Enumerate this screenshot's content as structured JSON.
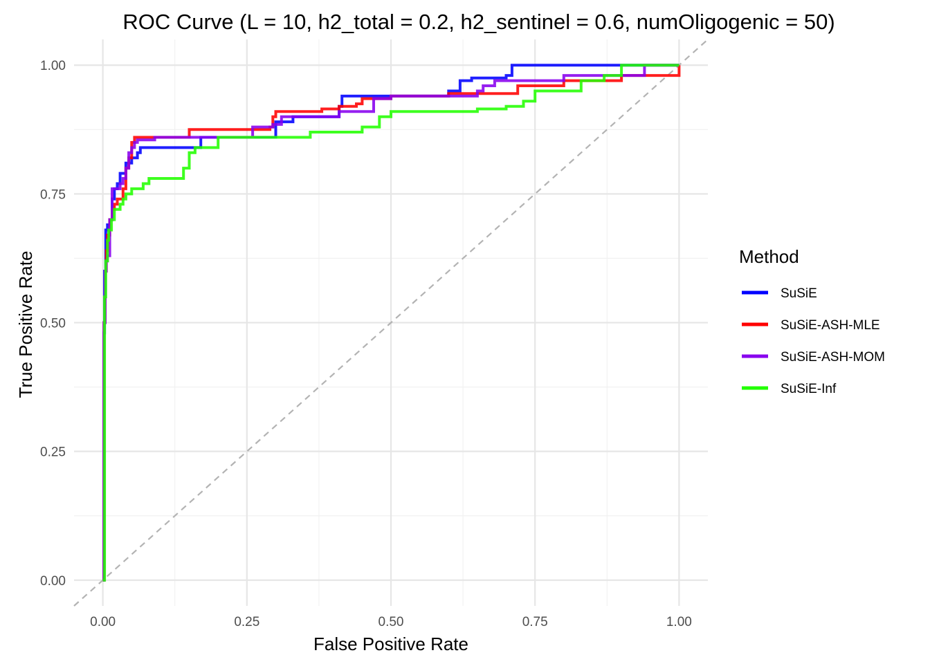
{
  "chart_data": {
    "type": "line",
    "title": "ROC Curve (L = 10, h2_total = 0.2, h2_sentinel = 0.6, numOligogenic = 50)",
    "xlabel": "False Positive Rate",
    "ylabel": "True Positive Rate",
    "xlim": [
      -0.05,
      1.05
    ],
    "ylim": [
      -0.05,
      1.05
    ],
    "xticks": [
      0,
      0.25,
      0.5,
      0.75,
      1
    ],
    "yticks": [
      0,
      0.25,
      0.5,
      0.75,
      1
    ],
    "xtick_labels": [
      "0.00",
      "0.25",
      "0.50",
      "0.75",
      "1.00"
    ],
    "ytick_labels": [
      "0.00",
      "0.25",
      "0.50",
      "0.75",
      "1.00"
    ],
    "grid": true,
    "reference_line": {
      "x": [
        -0.05,
        1.05
      ],
      "y": [
        -0.05,
        1.05
      ],
      "style": "dashed",
      "color": "#b3b3b3"
    },
    "legend": {
      "title": "Method",
      "position": "right"
    },
    "series": [
      {
        "name": "SuSiE",
        "color": "#0000ff",
        "x": [
          0,
          0.002,
          0.003,
          0.005,
          0.008,
          0.012,
          0.016,
          0.02,
          0.025,
          0.03,
          0.035,
          0.04,
          0.045,
          0.05,
          0.055,
          0.06,
          0.065,
          0.07,
          0.09,
          0.13,
          0.17,
          0.24,
          0.3,
          0.33,
          0.38,
          0.41,
          0.415,
          0.44,
          0.5,
          0.6,
          0.62,
          0.63,
          0.64,
          0.66,
          0.7,
          0.71,
          0.8,
          0.87,
          0.93,
          1.0
        ],
        "y": [
          0,
          0.48,
          0.6,
          0.68,
          0.69,
          0.7,
          0.74,
          0.76,
          0.77,
          0.79,
          0.79,
          0.81,
          0.81,
          0.82,
          0.82,
          0.83,
          0.84,
          0.84,
          0.84,
          0.84,
          0.86,
          0.86,
          0.89,
          0.9,
          0.9,
          0.92,
          0.94,
          0.94,
          0.94,
          0.95,
          0.97,
          0.97,
          0.975,
          0.975,
          0.98,
          1.0,
          1.0,
          1.0,
          1.0,
          1.0
        ]
      },
      {
        "name": "SuSiE-ASH-MLE",
        "color": "#ff0000",
        "x": [
          0,
          0.002,
          0.004,
          0.006,
          0.008,
          0.012,
          0.016,
          0.02,
          0.025,
          0.03,
          0.035,
          0.04,
          0.045,
          0.05,
          0.055,
          0.065,
          0.1,
          0.15,
          0.25,
          0.29,
          0.295,
          0.3,
          0.33,
          0.38,
          0.41,
          0.44,
          0.45,
          0.5,
          0.6,
          0.7,
          0.72,
          0.72,
          0.8,
          0.9,
          0.95,
          0.96,
          1.0
        ],
        "y": [
          0,
          0.5,
          0.6,
          0.64,
          0.67,
          0.7,
          0.72,
          0.73,
          0.74,
          0.74,
          0.76,
          0.8,
          0.82,
          0.85,
          0.86,
          0.86,
          0.86,
          0.875,
          0.875,
          0.88,
          0.9,
          0.91,
          0.91,
          0.915,
          0.92,
          0.925,
          0.935,
          0.94,
          0.945,
          0.945,
          0.945,
          0.96,
          0.97,
          0.98,
          0.98,
          0.98,
          1.0
        ]
      },
      {
        "name": "SuSiE-ASH-MOM",
        "color": "#8800ee",
        "x": [
          0,
          0.002,
          0.004,
          0.006,
          0.008,
          0.012,
          0.016,
          0.02,
          0.03,
          0.035,
          0.04,
          0.045,
          0.05,
          0.055,
          0.06,
          0.09,
          0.15,
          0.26,
          0.295,
          0.31,
          0.37,
          0.4,
          0.41,
          0.47,
          0.5,
          0.6,
          0.65,
          0.66,
          0.68,
          0.75,
          0.8,
          0.93,
          0.94,
          1.0
        ],
        "y": [
          0,
          0.5,
          0.6,
          0.62,
          0.63,
          0.7,
          0.76,
          0.76,
          0.77,
          0.78,
          0.8,
          0.83,
          0.84,
          0.85,
          0.855,
          0.86,
          0.86,
          0.88,
          0.885,
          0.9,
          0.9,
          0.9,
          0.91,
          0.935,
          0.94,
          0.94,
          0.95,
          0.96,
          0.97,
          0.97,
          0.98,
          0.98,
          1.0,
          1.0
        ]
      },
      {
        "name": "SuSiE-Inf",
        "color": "#22ff00",
        "x": [
          0,
          0.003,
          0.005,
          0.008,
          0.01,
          0.015,
          0.02,
          0.025,
          0.03,
          0.035,
          0.04,
          0.05,
          0.06,
          0.07,
          0.08,
          0.1,
          0.12,
          0.14,
          0.15,
          0.16,
          0.18,
          0.2,
          0.25,
          0.3,
          0.36,
          0.45,
          0.48,
          0.5,
          0.6,
          0.65,
          0.7,
          0.73,
          0.75,
          0.8,
          0.83,
          0.87,
          0.9,
          0.95,
          1.0
        ],
        "y": [
          0,
          0.55,
          0.62,
          0.66,
          0.68,
          0.7,
          0.72,
          0.72,
          0.73,
          0.74,
          0.75,
          0.76,
          0.76,
          0.77,
          0.78,
          0.78,
          0.78,
          0.8,
          0.83,
          0.84,
          0.84,
          0.86,
          0.86,
          0.86,
          0.87,
          0.88,
          0.9,
          0.91,
          0.91,
          0.915,
          0.92,
          0.93,
          0.95,
          0.95,
          0.97,
          0.98,
          1.0,
          1.0,
          1.0
        ]
      }
    ]
  }
}
